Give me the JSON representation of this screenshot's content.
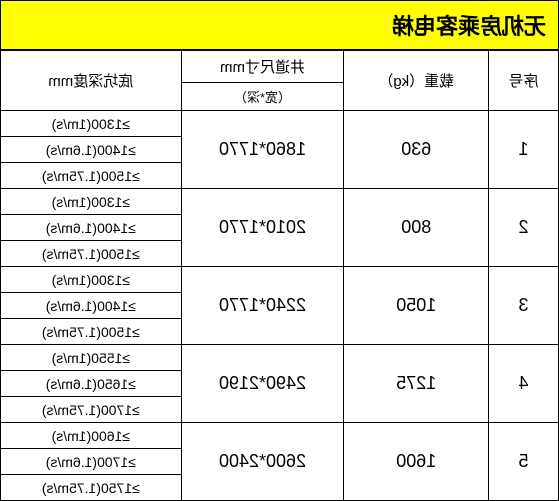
{
  "title": "无机房乘客电梯",
  "headers": {
    "col1": "序号",
    "col2": "载重（kg）",
    "col3_top": "井道尺寸mm",
    "col3_sub": "（宽*深）",
    "col4": "底坑深度mm"
  },
  "groups": [
    {
      "seq": "1",
      "load": "630",
      "shaft": "1860*1770",
      "depths": [
        "≥1300(1m/s)",
        "≥1400(1.6m/s)",
        "≥1500(1.75m/s)"
      ]
    },
    {
      "seq": "2",
      "load": "800",
      "shaft": "2010*1770",
      "depths": [
        "≥1300(1m/s)",
        "≥1400(1.6m/s)",
        "≥1500(1.75m/s)"
      ]
    },
    {
      "seq": "3",
      "load": "1050",
      "shaft": "2240*1770",
      "depths": [
        "≥1300(1m/s)",
        "≥1400(1.6m/s)",
        "≥1500(1.75m/s)"
      ]
    },
    {
      "seq": "4",
      "load": "1275",
      "shaft": "2490*2190",
      "depths": [
        "≥1550(1m/s)",
        "≥1650(1.6m/s)",
        "≥1700(1.75m/s)"
      ]
    },
    {
      "seq": "5",
      "load": "1600",
      "shaft": "2600*2400",
      "depths": [
        "≥1600(1m/s)",
        "≥1700(1.6m/s)",
        "≥1750(1.75m/s)"
      ]
    }
  ],
  "colors": {
    "title_bg": "#ffff00",
    "border": "#000000",
    "bg": "#ffffff"
  }
}
